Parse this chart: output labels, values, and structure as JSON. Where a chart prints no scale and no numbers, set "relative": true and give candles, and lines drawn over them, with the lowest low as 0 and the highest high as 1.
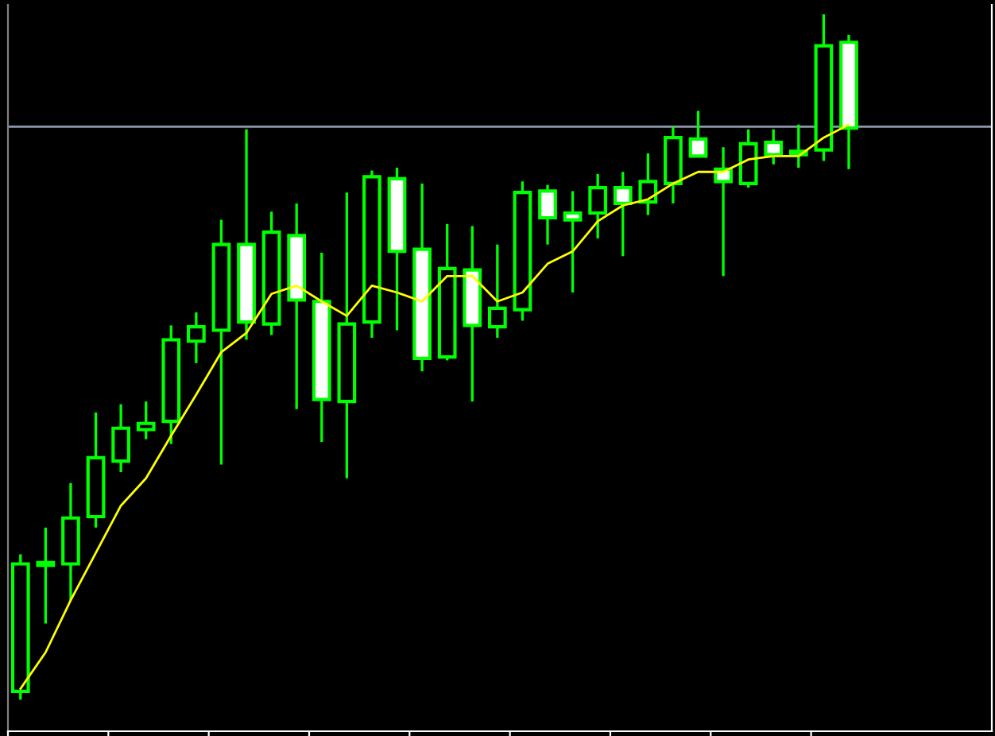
{
  "chart_data": {
    "type": "candlestick",
    "relative": true,
    "categories": [
      null,
      null,
      null,
      null,
      null,
      null,
      null,
      null,
      null,
      null,
      null,
      null,
      null,
      null,
      null,
      null,
      null,
      null,
      null,
      null,
      null,
      null,
      null,
      null,
      null,
      null,
      null,
      null,
      null,
      null,
      null,
      null,
      null,
      null
    ],
    "color": "#00ff00",
    "colors": [
      "#000000",
      "#000000",
      "#000000",
      "#000000",
      "#000000",
      "#000000",
      "#000000",
      "#000000",
      "#000000",
      "#ffffff",
      "#000000",
      "#ffffff",
      "#ffffff",
      "#000000",
      "#000000",
      "#ffffff",
      "#ffffff",
      "#000000",
      "#ffffff",
      "#000000",
      "#000000",
      "#ffffff",
      "#ffffff",
      "#000000",
      "#ffffff",
      "#000000",
      "#000000",
      "#ffffff",
      "#ffffff",
      "#000000",
      "#ffffff",
      "#000000",
      "#000000",
      "#ffffff"
    ],
    "ohlc": [
      [
        0.012,
        0.212,
        0,
        0.198
      ],
      [
        0.196,
        0.251,
        0.111,
        0.2
      ],
      [
        0.198,
        0.316,
        0.145,
        0.265
      ],
      [
        0.267,
        0.419,
        0.251,
        0.353
      ],
      [
        0.348,
        0.431,
        0.332,
        0.396
      ],
      [
        0.394,
        0.435,
        0.38,
        0.403
      ],
      [
        0.406,
        0.546,
        0.373,
        0.525
      ],
      [
        0.523,
        0.565,
        0.491,
        0.544
      ],
      [
        0.539,
        0.7,
        0.343,
        0.664
      ],
      [
        0.664,
        0.832,
        0.525,
        0.551
      ],
      [
        0.548,
        0.712,
        0.532,
        0.682
      ],
      [
        0.677,
        0.724,
        0.424,
        0.583
      ],
      [
        0.581,
        0.652,
        0.376,
        0.438
      ],
      [
        0.435,
        0.74,
        0.323,
        0.548
      ],
      [
        0.551,
        0.772,
        0.528,
        0.763
      ],
      [
        0.76,
        0.776,
        0.539,
        0.654
      ],
      [
        0.657,
        0.753,
        0.479,
        0.498
      ],
      [
        0.5,
        0.694,
        0.495,
        0.629
      ],
      [
        0.627,
        0.691,
        0.435,
        0.546
      ],
      [
        0.544,
        0.664,
        0.528,
        0.571
      ],
      [
        0.569,
        0.756,
        0.553,
        0.74
      ],
      [
        0.742,
        0.751,
        0.664,
        0.703
      ],
      [
        0.71,
        0.742,
        0.594,
        0.7
      ],
      [
        0.71,
        0.767,
        0.673,
        0.747
      ],
      [
        0.747,
        0.77,
        0.647,
        0.724
      ],
      [
        0.726,
        0.797,
        0.707,
        0.756
      ],
      [
        0.753,
        0.836,
        0.724,
        0.82
      ],
      [
        0.818,
        0.859,
        0.793,
        0.793
      ],
      [
        0.774,
        0.806,
        0.618,
        0.756
      ],
      [
        0.753,
        0.832,
        0.747,
        0.811
      ],
      [
        0.813,
        0.832,
        0.781,
        0.795
      ],
      [
        0.795,
        0.839,
        0.776,
        0.8
      ],
      [
        0.802,
        1.0,
        0.786,
        0.954
      ],
      [
        0.959,
        0.97,
        0.774,
        0.834
      ]
    ],
    "series": [
      {
        "type": "line",
        "color": "#ffff00",
        "values": [
          0.016,
          0.069,
          0.145,
          0.214,
          0.283,
          0.323,
          0.385,
          0.445,
          0.507,
          0.535,
          0.592,
          0.604,
          0.581,
          0.56,
          0.604,
          0.594,
          0.581,
          0.618,
          0.618,
          0.581,
          0.594,
          0.636,
          0.654,
          0.698,
          0.721,
          0.73,
          0.753,
          0.77,
          0.77,
          0.788,
          0.793,
          0.793,
          0.82,
          0.839
        ]
      }
    ],
    "ref_lines": [
      {
        "axis": "y",
        "value": 0.836,
        "color": "#8c99ad"
      }
    ]
  }
}
